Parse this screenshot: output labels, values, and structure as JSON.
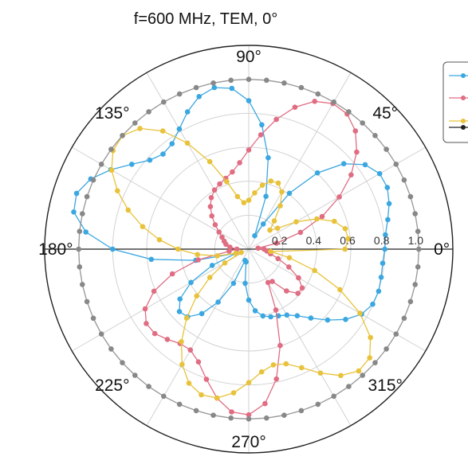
{
  "chart_data": {
    "type": "polar-line",
    "title": "f=600 MHz, TEM, 0°",
    "angle_ticks": [
      {
        "deg": 0,
        "label": "0°"
      },
      {
        "deg": 45,
        "label": "45°"
      },
      {
        "deg": 90,
        "label": "90°"
      },
      {
        "deg": 135,
        "label": "135°"
      },
      {
        "deg": 180,
        "label": "180°"
      },
      {
        "deg": 225,
        "label": "225°"
      },
      {
        "deg": 270,
        "label": "270°"
      },
      {
        "deg": 315,
        "label": "315°"
      }
    ],
    "radial_ticks": [
      {
        "value": 0.2,
        "label": "0.2"
      },
      {
        "value": 0.4,
        "label": "0.4"
      },
      {
        "value": 0.6,
        "label": "0.6"
      },
      {
        "value": 0.8,
        "label": "0.8"
      },
      {
        "value": 1.0,
        "label": "1.0"
      }
    ],
    "rlim": [
      0,
      1.2
    ],
    "grid": true,
    "legend": {
      "placement": "top-right",
      "entries": [
        "",
        "",
        "",
        ""
      ]
    },
    "series": [
      {
        "color": "#3ba7e0",
        "angles_deg": [
          0,
          6,
          12,
          18,
          24,
          30,
          36,
          42,
          48,
          54,
          60,
          66,
          72,
          78,
          84,
          90,
          96,
          102,
          108,
          114,
          120,
          126,
          132,
          138,
          144,
          150,
          156,
          162,
          168,
          174,
          180,
          186,
          192,
          198,
          204,
          210,
          216,
          222,
          228,
          234,
          240,
          246,
          252,
          258,
          264,
          270,
          276,
          282,
          288,
          294,
          300,
          306,
          312,
          318,
          324,
          330,
          336,
          342,
          348,
          354
        ],
        "values": [
          0.8,
          0.808,
          0.836,
          0.868,
          0.892,
          0.889,
          0.846,
          0.752,
          0.604,
          0.407,
          0.171,
          0.086,
          0.327,
          0.55,
          0.736,
          0.874,
          0.952,
          0.973,
          0.945,
          0.885,
          0.817,
          0.767,
          0.753,
          0.783,
          0.85,
          0.936,
          1.017,
          1.064,
          1.052,
          0.963,
          0.8,
          0.576,
          0.318,
          0.079,
          0.235,
          0.392,
          0.5,
          0.549,
          0.537,
          0.47,
          0.36,
          0.22,
          0.07,
          0.077,
          0.202,
          0.3,
          0.365,
          0.402,
          0.419,
          0.43,
          0.448,
          0.485,
          0.546,
          0.624,
          0.704,
          0.766,
          0.798,
          0.803,
          0.796,
          0.792
        ]
      },
      {
        "color": "#e06d82",
        "angles_deg": [
          0,
          6,
          12,
          18,
          24,
          30,
          36,
          42,
          48,
          54,
          60,
          66,
          72,
          78,
          84,
          90,
          96,
          102,
          108,
          114,
          120,
          126,
          132,
          138,
          144,
          150,
          156,
          162,
          168,
          174,
          180,
          186,
          192,
          198,
          204,
          210,
          216,
          222,
          228,
          234,
          240,
          246,
          252,
          258,
          264,
          270,
          276,
          282,
          288,
          294,
          300,
          306,
          312,
          318,
          324,
          330,
          336,
          342,
          348,
          354
        ],
        "values": [
          0.09,
          0.055,
          0.167,
          0.32,
          0.472,
          0.615,
          0.744,
          0.854,
          0.937,
          0.984,
          0.99,
          0.953,
          0.879,
          0.781,
          0.677,
          0.584,
          0.512,
          0.465,
          0.438,
          0.42,
          0.402,
          0.375,
          0.337,
          0.292,
          0.244,
          0.202,
          0.172,
          0.152,
          0.137,
          0.111,
          0.07,
          0.116,
          0.304,
          0.472,
          0.61,
          0.703,
          0.745,
          0.743,
          0.715,
          0.687,
          0.686,
          0.727,
          0.806,
          0.897,
          0.964,
          0.976,
          0.915,
          0.782,
          0.597,
          0.392,
          0.227,
          0.235,
          0.332,
          0.389,
          0.389,
          0.338,
          0.258,
          0.181,
          0.131,
          0.107
        ]
      },
      {
        "color": "#e8c23a",
        "angles_deg": [
          0,
          6,
          12,
          18,
          24,
          30,
          36,
          42,
          48,
          54,
          60,
          66,
          72,
          78,
          84,
          90,
          96,
          102,
          108,
          114,
          120,
          126,
          132,
          138,
          144,
          150,
          156,
          162,
          168,
          174,
          180,
          186,
          192,
          198,
          204,
          210,
          216,
          222,
          228,
          234,
          240,
          246,
          252,
          258,
          264,
          270,
          276,
          282,
          288,
          294,
          300,
          306,
          312,
          318,
          324,
          330,
          336,
          342,
          348,
          354
        ],
        "values": [
          0.566,
          0.588,
          0.58,
          0.529,
          0.438,
          0.322,
          0.21,
          0.167,
          0.224,
          0.315,
          0.389,
          0.426,
          0.422,
          0.385,
          0.333,
          0.288,
          0.275,
          0.317,
          0.418,
          0.564,
          0.721,
          0.86,
          0.956,
          0.999,
          0.987,
          0.931,
          0.845,
          0.745,
          0.638,
          0.528,
          0.416,
          0.303,
          0.189,
          0.081,
          0.048,
          0.162,
          0.283,
          0.412,
          0.546,
          0.674,
          0.784,
          0.864,
          0.902,
          0.896,
          0.851,
          0.786,
          0.727,
          0.697,
          0.71,
          0.764,
          0.843,
          0.92,
          0.966,
          0.957,
          0.885,
          0.755,
          0.587,
          0.407,
          0.244,
          0.129
        ]
      },
      {
        "color": "#888888",
        "angles_deg": [
          0,
          6,
          12,
          18,
          24,
          30,
          36,
          42,
          48,
          54,
          60,
          66,
          72,
          78,
          84,
          90,
          96,
          102,
          108,
          114,
          120,
          126,
          132,
          138,
          144,
          150,
          156,
          162,
          168,
          174,
          180,
          186,
          192,
          198,
          204,
          210,
          216,
          222,
          228,
          234,
          240,
          246,
          252,
          258,
          264,
          270,
          276,
          282,
          288,
          294,
          300,
          306,
          312,
          318,
          324,
          330,
          336,
          342,
          348,
          354
        ],
        "values": [
          1.0,
          1.0,
          1.0,
          1.0,
          1.0,
          1.0,
          1.0,
          1.0,
          1.0,
          1.0,
          1.0,
          1.0,
          1.0,
          1.0,
          1.0,
          1.0,
          1.0,
          1.0,
          1.0,
          1.0,
          1.0,
          1.0,
          1.0,
          1.0,
          1.0,
          1.0,
          1.0,
          1.0,
          1.0,
          1.0,
          1.0,
          1.0,
          1.0,
          1.0,
          1.0,
          1.0,
          1.0,
          1.0,
          1.0,
          1.0,
          1.0,
          1.0,
          1.0,
          1.0,
          1.0,
          1.0,
          1.0,
          1.0,
          1.0,
          1.0,
          1.0,
          1.0,
          1.0,
          1.0,
          1.0,
          1.0,
          1.0,
          1.0,
          1.0,
          1.0
        ]
      }
    ]
  }
}
